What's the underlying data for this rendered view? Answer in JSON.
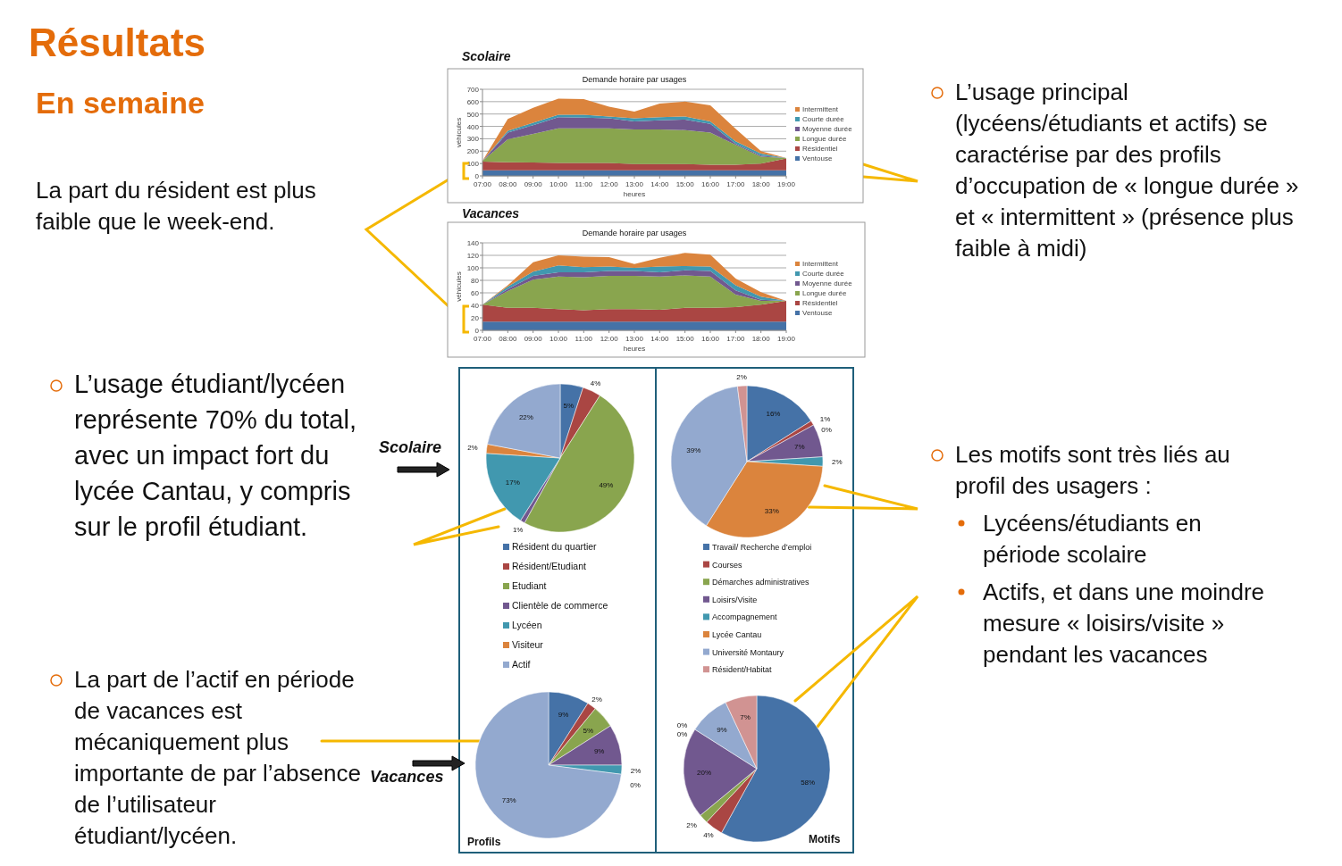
{
  "chart_data": [
    {
      "type": "other",
      "title": "Résultats",
      "subtitle": "En semaine",
      "annotations": [
        "La part du résident est plus faible que le week-end.",
        "L’usage principal (lycéens/étudiants et actifs) se caractérise par des profils d’occupation  de « longue durée » et « intermittent » (présence plus faible à midi)",
        "L’usage étudiant/lycéen représente 70% du total, avec un impact fort du lycée Cantau, y compris sur le profil étudiant.",
        "La part de l’actif en période de vacances est mécaniquement plus importante de par l’absence de l’utilisateur étudiant/lycéen.",
        "Les motifs sont très liés au profil des usagers :",
        "Lycéens/étudiants en période scolaire",
        "Actifs, et dans une moindre mesure « loisirs/visite » pendant les vacances"
      ]
    },
    {
      "type": "area",
      "subtitle": "Scolaire",
      "title": "Demande horaire par usages",
      "xlabel": "heures",
      "ylabel": "véhicules",
      "stacked": true,
      "grid": "y",
      "legend": "right",
      "ylim": [
        0,
        700
      ],
      "yticks": [
        0,
        100,
        200,
        300,
        400,
        500,
        600,
        700
      ],
      "categories": [
        "07:00",
        "08:00",
        "09:00",
        "10:00",
        "11:00",
        "12:00",
        "13:00",
        "14:00",
        "15:00",
        "16:00",
        "17:00",
        "18:00",
        "19:00"
      ],
      "series": [
        {
          "name": "Ventouse",
          "color": "#4572a7",
          "values": [
            45,
            45,
            45,
            45,
            45,
            45,
            45,
            45,
            45,
            45,
            45,
            45,
            45
          ]
        },
        {
          "name": "Résidentiel",
          "color": "#aa4643",
          "values": [
            70,
            65,
            63,
            60,
            60,
            60,
            50,
            50,
            50,
            45,
            45,
            55,
            95
          ]
        },
        {
          "name": "Longue durée",
          "color": "#89a54e",
          "values": [
            5,
            185,
            232,
            280,
            280,
            280,
            280,
            280,
            275,
            260,
            160,
            55,
            5
          ]
        },
        {
          "name": "Moyenne durée",
          "color": "#71588f",
          "values": [
            0,
            55,
            70,
            90,
            85,
            80,
            65,
            75,
            85,
            70,
            10,
            10,
            0
          ]
        },
        {
          "name": "Courte durée",
          "color": "#4198af",
          "values": [
            0,
            15,
            20,
            20,
            25,
            15,
            25,
            25,
            25,
            20,
            20,
            15,
            0
          ]
        },
        {
          "name": "Intermittent",
          "color": "#db843d",
          "values": [
            0,
            95,
            120,
            130,
            125,
            80,
            55,
            110,
            120,
            130,
            100,
            20,
            0
          ]
        }
      ]
    },
    {
      "type": "area",
      "subtitle": "Vacances",
      "title": "Demande horaire par usages",
      "xlabel": "heures",
      "ylabel": "véhicules",
      "stacked": true,
      "grid": "y",
      "legend": "right",
      "ylim": [
        0,
        140
      ],
      "yticks": [
        0,
        20,
        40,
        60,
        80,
        100,
        120,
        140
      ],
      "categories": [
        "07:00",
        "08:00",
        "09:00",
        "10:00",
        "11:00",
        "12:00",
        "13:00",
        "14:00",
        "15:00",
        "16:00",
        "17:00",
        "18:00",
        "19:00"
      ],
      "series": [
        {
          "name": "Ventouse",
          "color": "#4572a7",
          "values": [
            14,
            14,
            14,
            14,
            14,
            14,
            14,
            14,
            14,
            14,
            14,
            14,
            14
          ]
        },
        {
          "name": "Résidentiel",
          "color": "#aa4643",
          "values": [
            27,
            22,
            22,
            20,
            18,
            20,
            20,
            19,
            22,
            22,
            23,
            27,
            33
          ]
        },
        {
          "name": "Longue durée",
          "color": "#89a54e",
          "values": [
            0,
            27,
            45,
            52,
            53,
            53,
            53,
            53,
            52,
            50,
            20,
            6,
            0
          ]
        },
        {
          "name": "Moyenne durée",
          "color": "#71588f",
          "values": [
            0,
            3,
            6,
            7,
            8,
            8,
            8,
            7,
            8,
            9,
            7,
            2,
            0
          ]
        },
        {
          "name": "Courte durée",
          "color": "#4198af",
          "values": [
            0,
            4,
            7,
            11,
            8,
            7,
            5,
            9,
            7,
            7,
            8,
            5,
            0
          ]
        },
        {
          "name": "Intermittent",
          "color": "#db843d",
          "values": [
            0,
            2,
            15,
            16,
            17,
            15,
            6,
            14,
            21,
            19,
            11,
            7,
            0
          ]
        }
      ]
    },
    {
      "type": "pie",
      "legend": "bottom",
      "annotations": [
        "Scolaire"
      ],
      "categories": [
        "Résident du quartier",
        "Résident/Etudiant",
        "Etudiant",
        "Clientèle de commerce",
        "Lycéen",
        "Visiteur",
        "Actif"
      ],
      "values": [
        5,
        4,
        49,
        1,
        17,
        2,
        22
      ],
      "value_labels": [
        "5%",
        "4%",
        "49%",
        "1%",
        "17%",
        "2%",
        "22%"
      ],
      "colors": [
        "#4572a7",
        "#aa4643",
        "#89a54e",
        "#71588f",
        "#4198af",
        "#db843d",
        "#93a9cf"
      ]
    },
    {
      "type": "pie",
      "legend": "bottom",
      "categories": [
        "Travail/ Recherche d’emploi",
        "Courses",
        "Démarches administratives",
        "Loisirs/Visite",
        "Accompagnement",
        "Lycée Cantau",
        "Université Montaury",
        "Résident/Habitat"
      ],
      "values": [
        16,
        1,
        0,
        7,
        2,
        33,
        39,
        2
      ],
      "value_labels": [
        "16%",
        "1%",
        "0%",
        "7%",
        "2%",
        "33%",
        "39%",
        "2%"
      ],
      "colors": [
        "#4572a7",
        "#aa4643",
        "#89a54e",
        "#71588f",
        "#4198af",
        "#db843d",
        "#93a9cf",
        "#d19392"
      ]
    },
    {
      "type": "pie",
      "title": "Profils",
      "annotations": [
        "Vacances"
      ],
      "categories": [
        null,
        null,
        null,
        null,
        null,
        null,
        null
      ],
      "values": [
        9,
        2,
        5,
        9,
        2,
        0,
        73
      ],
      "value_labels": [
        "9%",
        "2%",
        "5%",
        "9%",
        "2%",
        "0%",
        "73%"
      ],
      "colors": [
        "#4572a7",
        "#aa4643",
        "#89a54e",
        "#71588f",
        "#4198af",
        "#db843d",
        "#93a9cf"
      ]
    },
    {
      "type": "pie",
      "title": "Motifs",
      "categories": [
        null,
        null,
        null,
        null,
        null,
        null,
        null,
        null
      ],
      "values": [
        58,
        4,
        2,
        20,
        0,
        0,
        9,
        7
      ],
      "value_labels": [
        "58%",
        "4%",
        "2%",
        "20%",
        "0%",
        "0%",
        "9%",
        "7%"
      ],
      "colors": [
        "#4572a7",
        "#aa4643",
        "#89a54e",
        "#71588f",
        "#4198af",
        "#db843d",
        "#93a9cf",
        "#d19392"
      ]
    }
  ]
}
